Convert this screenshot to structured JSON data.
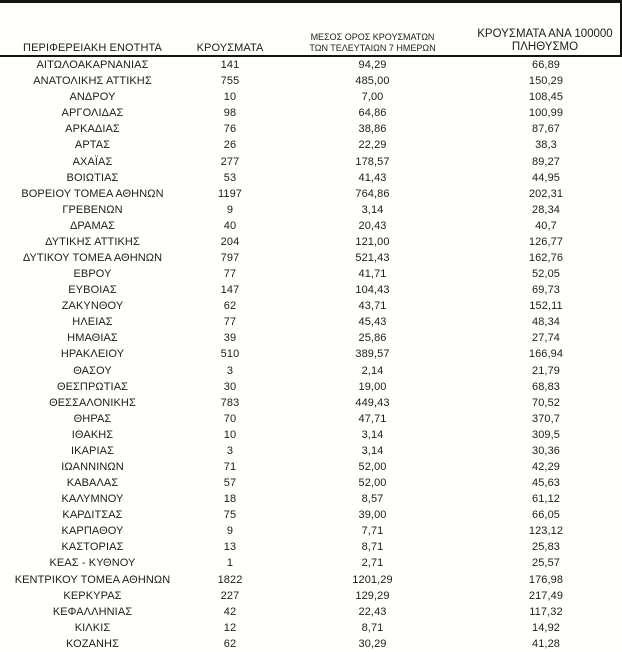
{
  "page": {
    "background_color": "#fffffc",
    "text_color": "#1c1c1c",
    "line_color": "#141414",
    "language": "el",
    "description_visible_content": "COVID-19 cases table by Greek regional unit"
  },
  "table": {
    "columns": [
      {
        "id": "region",
        "label": "ΠΕΡΙΦΕΡΕΙΑΚΗ ΕΝΟΤΗΤΑ"
      },
      {
        "id": "cases",
        "label": "ΚΡΟΥΣΜΑΤΑ"
      },
      {
        "id": "avg7",
        "label_line1": "ΜΕΣΟΣ ΟΡΟΣ ΚΡΟΥΣΜΑΤΩΝ",
        "label_line2": "ΤΩΝ ΤΕΛΕΥΤΑΙΩΝ 7 ΗΜΕΡΩΝ"
      },
      {
        "id": "per100k",
        "label_line1": "ΚΡΟΥΣΜΑΤΑ ΑΝΑ 100000",
        "label_line2": "ΠΛΗΘΥΣΜΟ"
      }
    ],
    "rows": [
      [
        "ΑΙΤΩΛΟΑΚΑΡΝΑΝΙΑΣ",
        "141",
        "94,29",
        "66,89"
      ],
      [
        "ΑΝΑΤΟΛΙΚΗΣ ΑΤΤΙΚΗΣ",
        "755",
        "485,00",
        "150,29"
      ],
      [
        "ΑΝΔΡΟΥ",
        "10",
        "7,00",
        "108,45"
      ],
      [
        "ΑΡΓΟΛΙΔΑΣ",
        "98",
        "64,86",
        "100,99"
      ],
      [
        "ΑΡΚΑΔΙΑΣ",
        "76",
        "38,86",
        "87,67"
      ],
      [
        "ΑΡΤΑΣ",
        "26",
        "22,29",
        "38,3"
      ],
      [
        "ΑΧΑΪΑΣ",
        "277",
        "178,57",
        "89,27"
      ],
      [
        "ΒΟΙΩΤΙΑΣ",
        "53",
        "41,43",
        "44,95"
      ],
      [
        "ΒΟΡΕΙΟΥ ΤΟΜΕΑ ΑΘΗΝΩΝ",
        "1197",
        "764,86",
        "202,31"
      ],
      [
        "ΓΡΕΒΕΝΩΝ",
        "9",
        "3,14",
        "28,34"
      ],
      [
        "ΔΡΑΜΑΣ",
        "40",
        "20,43",
        "40,7"
      ],
      [
        "ΔΥΤΙΚΗΣ ΑΤΤΙΚΗΣ",
        "204",
        "121,00",
        "126,77"
      ],
      [
        "ΔΥΤΙΚΟΥ ΤΟΜΕΑ ΑΘΗΝΩΝ",
        "797",
        "521,43",
        "162,76"
      ],
      [
        "ΕΒΡΟΥ",
        "77",
        "41,71",
        "52,05"
      ],
      [
        "ΕΥΒΟΙΑΣ",
        "147",
        "104,43",
        "69,73"
      ],
      [
        "ΖΑΚΥΝΘΟΥ",
        "62",
        "43,71",
        "152,11"
      ],
      [
        "ΗΛΕΙΑΣ",
        "77",
        "45,43",
        "48,34"
      ],
      [
        "ΗΜΑΘΙΑΣ",
        "39",
        "25,86",
        "27,74"
      ],
      [
        "ΗΡΑΚΛΕΙΟΥ",
        "510",
        "389,57",
        "166,94"
      ],
      [
        "ΘΑΣΟΥ",
        "3",
        "2,14",
        "21,79"
      ],
      [
        "ΘΕΣΠΡΩΤΙΑΣ",
        "30",
        "19,00",
        "68,83"
      ],
      [
        "ΘΕΣΣΑΛΟΝΙΚΗΣ",
        "783",
        "449,43",
        "70,52"
      ],
      [
        "ΘΗΡΑΣ",
        "70",
        "47,71",
        "370,7"
      ],
      [
        "ΙΘΑΚΗΣ",
        "10",
        "3,14",
        "309,5"
      ],
      [
        "ΙΚΑΡΙΑΣ",
        "3",
        "3,14",
        "30,36"
      ],
      [
        "ΙΩΑΝΝΙΝΩΝ",
        "71",
        "52,00",
        "42,29"
      ],
      [
        "ΚΑΒΑΛΑΣ",
        "57",
        "52,00",
        "45,63"
      ],
      [
        "ΚΑΛΥΜΝΟΥ",
        "18",
        "8,57",
        "61,12"
      ],
      [
        "ΚΑΡΔΙΤΣΑΣ",
        "75",
        "39,00",
        "66,05"
      ],
      [
        "ΚΑΡΠΑΘΟΥ",
        "9",
        "7,71",
        "123,12"
      ],
      [
        "ΚΑΣΤΟΡΙΑΣ",
        "13",
        "8,71",
        "25,83"
      ],
      [
        "ΚΕΑΣ - ΚΥΘΝΟΥ",
        "1",
        "2,71",
        "25,57"
      ],
      [
        "ΚΕΝΤΡΙΚΟΥ ΤΟΜΕΑ ΑΘΗΝΩΝ",
        "1822",
        "1201,29",
        "176,98"
      ],
      [
        "ΚΕΡΚΥΡΑΣ",
        "227",
        "129,29",
        "217,49"
      ],
      [
        "ΚΕΦΑΛΛΗΝΙΑΣ",
        "42",
        "22,43",
        "117,32"
      ],
      [
        "ΚΙΛΚΙΣ",
        "12",
        "8,71",
        "14,92"
      ],
      [
        "ΚΟΖΑΝΗΣ",
        "62",
        "30,29",
        "41,28"
      ]
    ]
  }
}
